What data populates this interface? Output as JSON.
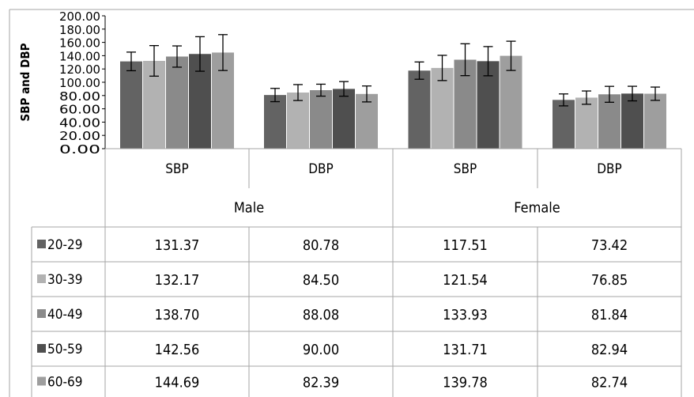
{
  "chart_data": {
    "type": "bar",
    "ylabel": "SBP and DBP",
    "ylim": [
      0,
      200
    ],
    "ytick_step": 20,
    "ytick_labels": [
      "0.00",
      "20.00",
      "40.00",
      "60.00",
      "80.00",
      "100.00",
      "120.00",
      "140.00",
      "160.00",
      "180.00",
      "200.00"
    ],
    "categories": [
      "SBP",
      "DBP",
      "SBP",
      "DBP"
    ],
    "groups": [
      {
        "label": "Male",
        "categories": [
          "SBP",
          "DBP"
        ]
      },
      {
        "label": "Female",
        "categories": [
          "SBP",
          "DBP"
        ]
      }
    ],
    "series": [
      {
        "name": "20-29",
        "color": "#636363",
        "values": [
          131.37,
          80.78,
          117.51,
          73.42
        ],
        "labels": [
          "131.37",
          "80.78",
          "117.51",
          "73.42"
        ],
        "error": [
          14,
          10,
          13,
          9
        ]
      },
      {
        "name": "30-39",
        "color": "#b2b2b2",
        "values": [
          132.17,
          84.5,
          121.54,
          76.85
        ],
        "labels": [
          "132.17",
          "84.50",
          "121.54",
          "76.85"
        ],
        "error": [
          23,
          12,
          19,
          10
        ]
      },
      {
        "name": "40-49",
        "color": "#8a8a8a",
        "values": [
          138.7,
          88.08,
          133.93,
          81.84
        ],
        "labels": [
          "138.70",
          "88.08",
          "133.93",
          "81.84"
        ],
        "error": [
          16,
          9,
          24,
          12
        ]
      },
      {
        "name": "50-59",
        "color": "#4f4f4f",
        "values": [
          142.56,
          90.0,
          131.71,
          82.94
        ],
        "labels": [
          "142.56",
          "90.00",
          "131.71",
          "82.94"
        ],
        "error": [
          26,
          11,
          22,
          11
        ]
      },
      {
        "name": "60-69",
        "color": "#9e9e9e",
        "values": [
          144.69,
          82.39,
          139.78,
          82.74
        ],
        "labels": [
          "144.69",
          "82.39",
          "139.78",
          "82.74"
        ],
        "error": [
          27,
          12,
          22,
          10
        ]
      }
    ],
    "legend": "table-left",
    "grid": false
  }
}
